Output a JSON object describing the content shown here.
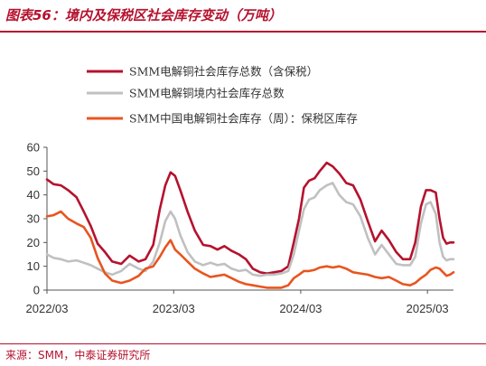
{
  "header": {
    "title": "图表56：境内及保税区社会库存变动（万吨）"
  },
  "footer": {
    "source": "来源：SMM，中泰证券研究所"
  },
  "colors": {
    "accent": "#b5122e",
    "series_total": "#b5122e",
    "series_domestic": "#c0c0c0",
    "series_bonded": "#e8551f",
    "axis": "#555555"
  },
  "chart_data": {
    "type": "line",
    "title": "",
    "xlabel": "",
    "ylabel": "",
    "ylim": [
      0,
      60
    ],
    "yticks": [
      0,
      10,
      20,
      30,
      40,
      50,
      60
    ],
    "xticks": [
      "2022/03",
      "2023/03",
      "2024/03",
      "2025/03"
    ],
    "xlim": [
      "2022-03-01",
      "2025-05-15"
    ],
    "grid": false,
    "legend_position": "top-center",
    "series": [
      {
        "name": "SMM电解铜社会库存总数（含保税）",
        "color": "#b5122e",
        "points": [
          [
            "2022-03-01",
            46.5
          ],
          [
            "2022-03-20",
            44.5
          ],
          [
            "2022-04-10",
            44
          ],
          [
            "2022-05-01",
            42
          ],
          [
            "2022-05-25",
            39
          ],
          [
            "2022-06-15",
            33
          ],
          [
            "2022-07-05",
            27
          ],
          [
            "2022-07-25",
            19.5
          ],
          [
            "2022-08-15",
            16
          ],
          [
            "2022-09-05",
            12
          ],
          [
            "2022-10-01",
            11
          ],
          [
            "2022-10-25",
            14.5
          ],
          [
            "2022-11-20",
            12
          ],
          [
            "2022-12-10",
            13
          ],
          [
            "2023-01-01",
            19
          ],
          [
            "2023-01-20",
            34
          ],
          [
            "2023-02-05",
            44
          ],
          [
            "2023-02-20",
            49.5
          ],
          [
            "2023-03-05",
            48
          ],
          [
            "2023-03-20",
            42
          ],
          [
            "2023-04-10",
            33
          ],
          [
            "2023-05-01",
            25
          ],
          [
            "2023-05-25",
            19
          ],
          [
            "2023-06-15",
            18.5
          ],
          [
            "2023-07-05",
            17
          ],
          [
            "2023-07-25",
            18.5
          ],
          [
            "2023-08-15",
            16.5
          ],
          [
            "2023-09-05",
            15
          ],
          [
            "2023-09-25",
            13
          ],
          [
            "2023-10-15",
            9
          ],
          [
            "2023-11-05",
            7.5
          ],
          [
            "2023-11-25",
            7
          ],
          [
            "2023-12-15",
            7.5
          ],
          [
            "2024-01-05",
            8
          ],
          [
            "2024-01-25",
            10
          ],
          [
            "2024-02-10",
            20
          ],
          [
            "2024-02-25",
            30
          ],
          [
            "2024-03-10",
            43
          ],
          [
            "2024-03-25",
            46
          ],
          [
            "2024-04-10",
            47
          ],
          [
            "2024-04-25",
            50
          ],
          [
            "2024-05-15",
            53.5
          ],
          [
            "2024-06-01",
            52
          ],
          [
            "2024-06-20",
            49
          ],
          [
            "2024-07-10",
            45
          ],
          [
            "2024-07-30",
            44
          ],
          [
            "2024-08-20",
            38
          ],
          [
            "2024-09-10",
            29
          ],
          [
            "2024-10-01",
            20.5
          ],
          [
            "2024-10-20",
            25
          ],
          [
            "2024-11-10",
            21
          ],
          [
            "2024-12-01",
            16
          ],
          [
            "2024-12-20",
            13
          ],
          [
            "2025-01-10",
            13
          ],
          [
            "2025-01-25",
            20
          ],
          [
            "2025-02-10",
            35
          ],
          [
            "2025-02-25",
            42
          ],
          [
            "2025-03-10",
            42
          ],
          [
            "2025-03-25",
            41
          ],
          [
            "2025-04-05",
            30
          ],
          [
            "2025-04-15",
            22
          ],
          [
            "2025-04-25",
            19.5
          ],
          [
            "2025-05-05",
            20
          ],
          [
            "2025-05-15",
            20
          ]
        ]
      },
      {
        "name": "SMM电解铜境内社会库存总数",
        "color": "#c0c0c0",
        "points": [
          [
            "2022-03-01",
            15
          ],
          [
            "2022-03-20",
            13.5
          ],
          [
            "2022-04-10",
            13
          ],
          [
            "2022-05-01",
            12
          ],
          [
            "2022-05-25",
            12.5
          ],
          [
            "2022-06-15",
            11.5
          ],
          [
            "2022-07-05",
            10.5
          ],
          [
            "2022-07-25",
            9
          ],
          [
            "2022-08-15",
            7.5
          ],
          [
            "2022-09-05",
            6.5
          ],
          [
            "2022-10-01",
            8
          ],
          [
            "2022-10-25",
            11
          ],
          [
            "2022-11-20",
            9
          ],
          [
            "2022-12-10",
            8
          ],
          [
            "2023-01-01",
            12
          ],
          [
            "2023-01-20",
            20
          ],
          [
            "2023-02-05",
            29
          ],
          [
            "2023-02-20",
            33
          ],
          [
            "2023-03-05",
            30
          ],
          [
            "2023-03-20",
            23
          ],
          [
            "2023-04-10",
            16
          ],
          [
            "2023-05-01",
            12
          ],
          [
            "2023-05-25",
            10.5
          ],
          [
            "2023-06-15",
            11.5
          ],
          [
            "2023-07-05",
            10.5
          ],
          [
            "2023-07-25",
            11
          ],
          [
            "2023-08-15",
            9
          ],
          [
            "2023-09-05",
            8
          ],
          [
            "2023-09-25",
            8.5
          ],
          [
            "2023-10-15",
            6.5
          ],
          [
            "2023-11-05",
            6
          ],
          [
            "2023-11-25",
            6.5
          ],
          [
            "2023-12-15",
            6.5
          ],
          [
            "2024-01-05",
            7
          ],
          [
            "2024-01-25",
            8
          ],
          [
            "2024-02-10",
            15
          ],
          [
            "2024-02-25",
            25
          ],
          [
            "2024-03-10",
            34
          ],
          [
            "2024-03-25",
            38
          ],
          [
            "2024-04-10",
            39
          ],
          [
            "2024-04-25",
            42
          ],
          [
            "2024-05-15",
            44
          ],
          [
            "2024-06-01",
            45
          ],
          [
            "2024-06-20",
            40
          ],
          [
            "2024-07-10",
            37
          ],
          [
            "2024-07-30",
            36
          ],
          [
            "2024-08-20",
            31
          ],
          [
            "2024-09-10",
            22
          ],
          [
            "2024-10-01",
            15
          ],
          [
            "2024-10-20",
            19
          ],
          [
            "2024-11-10",
            15
          ],
          [
            "2024-12-01",
            11
          ],
          [
            "2024-12-20",
            10.5
          ],
          [
            "2025-01-10",
            10.5
          ],
          [
            "2025-01-25",
            14
          ],
          [
            "2025-02-10",
            28
          ],
          [
            "2025-02-25",
            36
          ],
          [
            "2025-03-10",
            37
          ],
          [
            "2025-03-25",
            32
          ],
          [
            "2025-04-05",
            20
          ],
          [
            "2025-04-15",
            14
          ],
          [
            "2025-04-25",
            12.5
          ],
          [
            "2025-05-05",
            13
          ],
          [
            "2025-05-15",
            13
          ]
        ]
      },
      {
        "name": "SMM中国电解铜社会库存（周）：保税区库存",
        "color": "#e8551f",
        "points": [
          [
            "2022-03-01",
            31
          ],
          [
            "2022-03-20",
            31.5
          ],
          [
            "2022-04-10",
            33
          ],
          [
            "2022-05-01",
            30
          ],
          [
            "2022-05-25",
            28
          ],
          [
            "2022-06-15",
            26.5
          ],
          [
            "2022-07-05",
            22
          ],
          [
            "2022-07-25",
            13.5
          ],
          [
            "2022-08-15",
            7
          ],
          [
            "2022-09-05",
            4
          ],
          [
            "2022-10-01",
            3
          ],
          [
            "2022-10-25",
            4
          ],
          [
            "2022-11-20",
            6
          ],
          [
            "2022-12-10",
            9
          ],
          [
            "2023-01-01",
            10
          ],
          [
            "2023-01-20",
            14
          ],
          [
            "2023-02-05",
            18
          ],
          [
            "2023-02-20",
            21
          ],
          [
            "2023-03-05",
            17
          ],
          [
            "2023-03-20",
            15
          ],
          [
            "2023-04-10",
            12
          ],
          [
            "2023-05-01",
            9
          ],
          [
            "2023-05-25",
            7
          ],
          [
            "2023-06-15",
            5.5
          ],
          [
            "2023-07-05",
            6
          ],
          [
            "2023-07-25",
            6.5
          ],
          [
            "2023-08-15",
            5
          ],
          [
            "2023-09-05",
            3.5
          ],
          [
            "2023-09-25",
            2.5
          ],
          [
            "2023-10-15",
            2
          ],
          [
            "2023-11-05",
            1.5
          ],
          [
            "2023-11-25",
            1
          ],
          [
            "2023-12-15",
            1
          ],
          [
            "2024-01-05",
            1
          ],
          [
            "2024-01-25",
            2
          ],
          [
            "2024-02-10",
            5
          ],
          [
            "2024-02-25",
            6.5
          ],
          [
            "2024-03-10",
            8
          ],
          [
            "2024-03-25",
            8
          ],
          [
            "2024-04-10",
            8.5
          ],
          [
            "2024-04-25",
            9.5
          ],
          [
            "2024-05-15",
            10
          ],
          [
            "2024-06-01",
            9.5
          ],
          [
            "2024-06-20",
            10
          ],
          [
            "2024-07-10",
            9
          ],
          [
            "2024-07-30",
            7.5
          ],
          [
            "2024-08-20",
            7
          ],
          [
            "2024-09-10",
            6.5
          ],
          [
            "2024-10-01",
            5.5
          ],
          [
            "2024-10-20",
            5
          ],
          [
            "2024-11-10",
            5.5
          ],
          [
            "2024-12-01",
            4
          ],
          [
            "2024-12-20",
            2.5
          ],
          [
            "2025-01-10",
            2
          ],
          [
            "2025-01-25",
            3
          ],
          [
            "2025-02-10",
            5
          ],
          [
            "2025-02-25",
            6.5
          ],
          [
            "2025-03-10",
            8.5
          ],
          [
            "2025-03-25",
            9.5
          ],
          [
            "2025-04-05",
            9
          ],
          [
            "2025-04-15",
            7.5
          ],
          [
            "2025-04-25",
            6
          ],
          [
            "2025-05-05",
            6.5
          ],
          [
            "2025-05-15",
            7.5
          ]
        ]
      }
    ]
  }
}
